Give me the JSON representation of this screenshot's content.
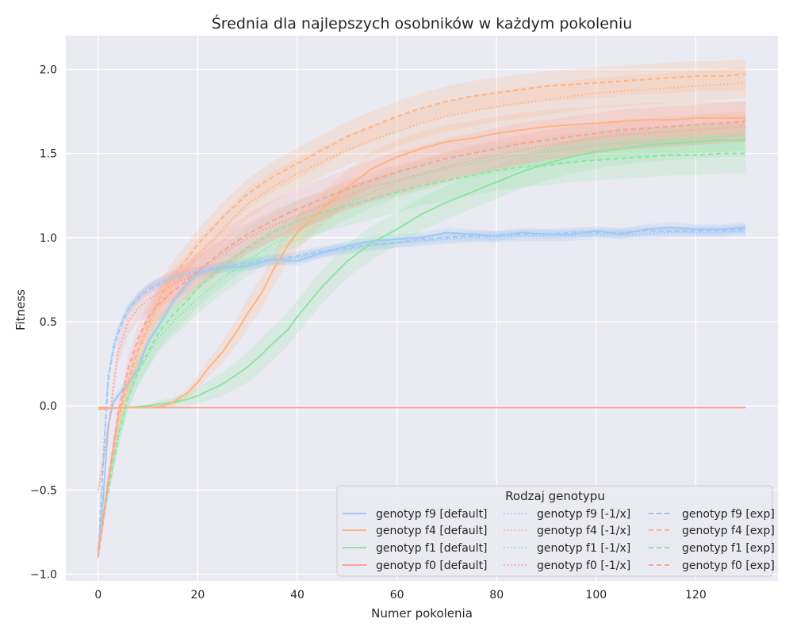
{
  "chart_data": {
    "type": "line",
    "title": "Średnia dla najlepszych osobników w każdym pokoleniu",
    "xlabel": "Numer pokolenia",
    "ylabel": "Fitness",
    "xlim": [
      -6.5,
      136.5
    ],
    "ylim": [
      -1.04,
      2.2
    ],
    "xticks": [
      0,
      20,
      40,
      60,
      80,
      100,
      120
    ],
    "yticks": [
      -1.0,
      -0.5,
      0.0,
      0.5,
      1.0,
      1.5,
      2.0
    ],
    "xtick_labels": [
      "0",
      "20",
      "40",
      "60",
      "80",
      "100",
      "120"
    ],
    "ytick_labels": [
      "−1.0",
      "−0.5",
      "0.0",
      "0.5",
      "1.0",
      "1.5",
      "2.0"
    ],
    "grid": true,
    "legend": {
      "title": "Rodzaj genotypu",
      "placement": "lower-right",
      "columns": 3
    },
    "colors": {
      "f9": "#a1c9f4",
      "f4": "#ffb482",
      "f1": "#8de5a1",
      "f0": "#ff9f9b",
      "background": "#eaeaf2",
      "grid": "#ffffff"
    },
    "series": [
      {
        "name": "genotyp f9 [default]",
        "genotype": "f9",
        "style": "solid",
        "x": [
          0,
          1,
          2,
          3,
          4,
          5,
          6,
          8,
          10,
          12,
          15,
          18,
          20,
          25,
          30,
          35,
          40,
          45,
          50,
          55,
          60,
          65,
          70,
          75,
          80,
          85,
          90,
          95,
          100,
          105,
          110,
          115,
          120,
          125,
          130
        ],
        "y": [
          -0.88,
          -0.55,
          -0.12,
          0.02,
          0.06,
          0.1,
          0.13,
          0.22,
          0.38,
          0.47,
          0.62,
          0.73,
          0.79,
          0.82,
          0.83,
          0.87,
          0.86,
          0.91,
          0.95,
          0.98,
          0.99,
          1.0,
          1.03,
          1.02,
          1.01,
          1.03,
          1.02,
          1.02,
          1.04,
          1.02,
          1.05,
          1.06,
          1.05,
          1.05,
          1.06
        ],
        "band": [
          0.02,
          0.02,
          0.02,
          0.03,
          0.03,
          0.03,
          0.03,
          0.03,
          0.03,
          0.03,
          0.03,
          0.03,
          0.03,
          0.03,
          0.03,
          0.03,
          0.03,
          0.03,
          0.03,
          0.03,
          0.03,
          0.03,
          0.03,
          0.03,
          0.03,
          0.03,
          0.03,
          0.03,
          0.03,
          0.03,
          0.03,
          0.03,
          0.03,
          0.03,
          0.03
        ]
      },
      {
        "name": "genotyp f4 [default]",
        "genotype": "f4",
        "style": "solid",
        "x": [
          0,
          5,
          10,
          13,
          15,
          18,
          20,
          22,
          25,
          28,
          30,
          33,
          35,
          38,
          40,
          45,
          50,
          55,
          60,
          65,
          70,
          75,
          80,
          85,
          90,
          95,
          100,
          105,
          110,
          115,
          120,
          125,
          130
        ],
        "y": [
          -0.02,
          -0.01,
          -0.01,
          0.0,
          0.02,
          0.08,
          0.14,
          0.22,
          0.32,
          0.45,
          0.55,
          0.68,
          0.8,
          0.95,
          1.03,
          1.17,
          1.3,
          1.41,
          1.48,
          1.53,
          1.57,
          1.59,
          1.62,
          1.64,
          1.66,
          1.67,
          1.68,
          1.69,
          1.7,
          1.7,
          1.71,
          1.71,
          1.71
        ],
        "band": [
          0.0,
          0.0,
          0.0,
          0.01,
          0.02,
          0.03,
          0.04,
          0.05,
          0.06,
          0.08,
          0.09,
          0.1,
          0.1,
          0.1,
          0.1,
          0.1,
          0.1,
          0.1,
          0.1,
          0.1,
          0.1,
          0.1,
          0.1,
          0.1,
          0.1,
          0.1,
          0.1,
          0.1,
          0.1,
          0.1,
          0.1,
          0.1,
          0.1
        ]
      },
      {
        "name": "genotyp f1 [default]",
        "genotype": "f1",
        "style": "solid",
        "x": [
          0,
          5,
          10,
          12,
          15,
          18,
          20,
          25,
          30,
          33,
          35,
          38,
          40,
          45,
          50,
          55,
          60,
          65,
          70,
          75,
          80,
          85,
          90,
          95,
          100,
          105,
          110,
          115,
          120,
          125,
          130
        ],
        "y": [
          -0.02,
          -0.01,
          0.0,
          0.01,
          0.02,
          0.04,
          0.06,
          0.13,
          0.23,
          0.31,
          0.37,
          0.45,
          0.53,
          0.71,
          0.86,
          0.97,
          1.05,
          1.14,
          1.21,
          1.27,
          1.33,
          1.39,
          1.44,
          1.48,
          1.51,
          1.53,
          1.55,
          1.56,
          1.57,
          1.58,
          1.58
        ],
        "band": [
          0.0,
          0.0,
          0.01,
          0.02,
          0.03,
          0.04,
          0.05,
          0.07,
          0.09,
          0.1,
          0.1,
          0.1,
          0.1,
          0.1,
          0.1,
          0.1,
          0.1,
          0.1,
          0.1,
          0.1,
          0.1,
          0.1,
          0.1,
          0.1,
          0.1,
          0.1,
          0.1,
          0.1,
          0.1,
          0.1,
          0.1
        ]
      },
      {
        "name": "genotyp f0 [default]",
        "genotype": "f0",
        "style": "solid",
        "x": [
          0,
          130
        ],
        "y": [
          -0.01,
          -0.01
        ],
        "band": [
          0.0,
          0.0
        ]
      },
      {
        "name": "genotyp f9 [-1/x]",
        "genotype": "f9",
        "style": "dotted",
        "x": [
          0,
          1,
          2,
          3,
          4,
          5,
          6,
          8,
          10,
          12,
          15,
          18,
          20,
          25,
          30,
          35,
          40,
          45,
          50,
          55,
          60,
          65,
          70,
          75,
          80,
          85,
          90,
          95,
          100,
          105,
          110,
          115,
          120,
          125,
          130
        ],
        "y": [
          -0.9,
          -0.3,
          0.18,
          0.35,
          0.45,
          0.52,
          0.58,
          0.65,
          0.7,
          0.73,
          0.77,
          0.79,
          0.8,
          0.82,
          0.84,
          0.86,
          0.88,
          0.91,
          0.93,
          0.95,
          0.97,
          0.98,
          0.99,
          1.0,
          1.0,
          1.01,
          1.01,
          1.01,
          1.02,
          1.02,
          1.02,
          1.03,
          1.03,
          1.03,
          1.04
        ],
        "band": [
          0.02,
          0.03,
          0.03,
          0.03,
          0.03,
          0.03,
          0.03,
          0.03,
          0.03,
          0.03,
          0.03,
          0.03,
          0.03,
          0.03,
          0.03,
          0.03,
          0.03,
          0.03,
          0.03,
          0.03,
          0.03,
          0.03,
          0.03,
          0.03,
          0.03,
          0.03,
          0.03,
          0.03,
          0.03,
          0.03,
          0.03,
          0.03,
          0.03,
          0.03,
          0.03
        ]
      },
      {
        "name": "genotyp f4 [-1/x]",
        "genotype": "f4",
        "style": "dotted",
        "x": [
          0,
          2,
          4,
          6,
          8,
          10,
          12,
          15,
          18,
          20,
          25,
          30,
          35,
          40,
          45,
          50,
          55,
          60,
          65,
          70,
          75,
          80,
          85,
          90,
          95,
          100,
          105,
          110,
          115,
          120,
          125,
          130
        ],
        "y": [
          -0.85,
          -0.45,
          -0.1,
          0.12,
          0.3,
          0.45,
          0.58,
          0.72,
          0.82,
          0.9,
          1.05,
          1.2,
          1.3,
          1.38,
          1.45,
          1.52,
          1.58,
          1.63,
          1.68,
          1.72,
          1.75,
          1.78,
          1.8,
          1.82,
          1.84,
          1.86,
          1.87,
          1.88,
          1.89,
          1.9,
          1.91,
          1.92
        ],
        "band": [
          0.05,
          0.05,
          0.06,
          0.07,
          0.08,
          0.08,
          0.09,
          0.09,
          0.09,
          0.09,
          0.09,
          0.09,
          0.09,
          0.09,
          0.09,
          0.09,
          0.09,
          0.09,
          0.09,
          0.09,
          0.09,
          0.09,
          0.09,
          0.09,
          0.09,
          0.09,
          0.09,
          0.09,
          0.09,
          0.09,
          0.09,
          0.09
        ]
      },
      {
        "name": "genotyp f1 [-1/x]",
        "genotype": "f1",
        "style": "dotted",
        "x": [
          0,
          2,
          4,
          6,
          8,
          10,
          12,
          15,
          18,
          20,
          25,
          30,
          35,
          40,
          45,
          50,
          55,
          60,
          65,
          70,
          75,
          80,
          85,
          90,
          95,
          100,
          105,
          110,
          115,
          120,
          125,
          130
        ],
        "y": [
          -0.85,
          -0.5,
          -0.2,
          0.05,
          0.2,
          0.3,
          0.4,
          0.5,
          0.58,
          0.64,
          0.76,
          0.86,
          0.96,
          1.04,
          1.12,
          1.2,
          1.27,
          1.33,
          1.37,
          1.41,
          1.44,
          1.47,
          1.49,
          1.51,
          1.53,
          1.55,
          1.56,
          1.57,
          1.58,
          1.59,
          1.6,
          1.61
        ],
        "band": [
          0.05,
          0.05,
          0.06,
          0.07,
          0.08,
          0.08,
          0.09,
          0.09,
          0.09,
          0.09,
          0.09,
          0.09,
          0.09,
          0.09,
          0.09,
          0.09,
          0.09,
          0.09,
          0.09,
          0.09,
          0.09,
          0.09,
          0.09,
          0.09,
          0.09,
          0.09,
          0.09,
          0.09,
          0.09,
          0.09,
          0.09,
          0.09
        ]
      },
      {
        "name": "genotyp f0 [-1/x]",
        "genotype": "f0",
        "style": "dotted",
        "x": [
          0,
          2,
          3,
          4,
          6,
          8,
          10,
          12,
          15,
          18,
          20,
          25,
          30,
          35,
          40,
          45,
          50,
          55,
          60,
          65,
          70,
          75,
          80,
          85,
          90,
          95,
          100,
          105,
          110,
          115,
          120,
          125,
          130
        ],
        "y": [
          -0.5,
          -0.15,
          0.1,
          0.32,
          0.5,
          0.58,
          0.63,
          0.67,
          0.72,
          0.76,
          0.8,
          0.9,
          1.0,
          1.07,
          1.13,
          1.19,
          1.25,
          1.3,
          1.34,
          1.38,
          1.42,
          1.46,
          1.49,
          1.52,
          1.55,
          1.57,
          1.59,
          1.61,
          1.62,
          1.63,
          1.64,
          1.65,
          1.66
        ],
        "band": [
          0.04,
          0.05,
          0.06,
          0.07,
          0.08,
          0.08,
          0.09,
          0.09,
          0.09,
          0.09,
          0.09,
          0.09,
          0.09,
          0.09,
          0.09,
          0.09,
          0.09,
          0.09,
          0.09,
          0.09,
          0.09,
          0.09,
          0.09,
          0.09,
          0.09,
          0.09,
          0.09,
          0.09,
          0.09,
          0.09,
          0.09,
          0.09,
          0.09
        ]
      },
      {
        "name": "genotyp f9 [exp]",
        "genotype": "f9",
        "style": "dashed",
        "x": [
          0,
          1,
          2,
          3,
          4,
          5,
          6,
          8,
          10,
          12,
          15,
          18,
          20,
          25,
          30,
          35,
          40,
          45,
          50,
          55,
          60,
          65,
          70,
          75,
          80,
          85,
          90,
          95,
          100,
          105,
          110,
          115,
          120,
          125,
          130
        ],
        "y": [
          -0.88,
          -0.35,
          0.15,
          0.33,
          0.43,
          0.51,
          0.57,
          0.64,
          0.69,
          0.72,
          0.76,
          0.78,
          0.8,
          0.83,
          0.85,
          0.87,
          0.89,
          0.92,
          0.94,
          0.96,
          0.97,
          0.99,
          1.0,
          1.01,
          1.01,
          1.02,
          1.02,
          1.03,
          1.03,
          1.03,
          1.04,
          1.04,
          1.04,
          1.04,
          1.05
        ],
        "band": [
          0.02,
          0.03,
          0.03,
          0.03,
          0.03,
          0.03,
          0.03,
          0.03,
          0.03,
          0.03,
          0.03,
          0.03,
          0.03,
          0.03,
          0.03,
          0.03,
          0.03,
          0.03,
          0.03,
          0.03,
          0.03,
          0.03,
          0.03,
          0.03,
          0.03,
          0.03,
          0.03,
          0.03,
          0.03,
          0.03,
          0.03,
          0.03,
          0.03,
          0.03,
          0.03
        ]
      },
      {
        "name": "genotyp f4 [exp]",
        "genotype": "f4",
        "style": "dashed",
        "x": [
          0,
          2,
          4,
          6,
          8,
          10,
          12,
          15,
          18,
          20,
          25,
          30,
          35,
          40,
          45,
          50,
          55,
          60,
          65,
          70,
          75,
          80,
          85,
          90,
          95,
          100,
          105,
          110,
          115,
          120,
          125,
          130
        ],
        "y": [
          -0.88,
          -0.45,
          -0.08,
          0.15,
          0.33,
          0.48,
          0.62,
          0.77,
          0.88,
          0.96,
          1.12,
          1.26,
          1.36,
          1.44,
          1.52,
          1.6,
          1.66,
          1.72,
          1.77,
          1.81,
          1.84,
          1.86,
          1.88,
          1.9,
          1.91,
          1.92,
          1.93,
          1.94,
          1.95,
          1.96,
          1.96,
          1.97
        ],
        "band": [
          0.05,
          0.05,
          0.06,
          0.07,
          0.08,
          0.08,
          0.09,
          0.09,
          0.09,
          0.09,
          0.09,
          0.09,
          0.09,
          0.09,
          0.09,
          0.09,
          0.09,
          0.09,
          0.09,
          0.09,
          0.09,
          0.09,
          0.09,
          0.09,
          0.09,
          0.09,
          0.09,
          0.09,
          0.09,
          0.09,
          0.09,
          0.09
        ]
      },
      {
        "name": "genotyp f1 [exp]",
        "genotype": "f1",
        "style": "dashed",
        "x": [
          0,
          2,
          4,
          6,
          8,
          10,
          12,
          15,
          18,
          20,
          25,
          30,
          35,
          40,
          45,
          50,
          55,
          60,
          65,
          70,
          75,
          80,
          85,
          90,
          95,
          100,
          105,
          110,
          115,
          120,
          125,
          130
        ],
        "y": [
          -0.85,
          -0.5,
          -0.18,
          0.05,
          0.2,
          0.32,
          0.43,
          0.54,
          0.63,
          0.7,
          0.83,
          0.94,
          1.03,
          1.1,
          1.15,
          1.19,
          1.23,
          1.27,
          1.31,
          1.34,
          1.37,
          1.4,
          1.42,
          1.43,
          1.45,
          1.46,
          1.47,
          1.48,
          1.49,
          1.49,
          1.5,
          1.5
        ],
        "band": [
          0.05,
          0.05,
          0.06,
          0.07,
          0.08,
          0.09,
          0.1,
          0.1,
          0.11,
          0.11,
          0.12,
          0.12,
          0.12,
          0.12,
          0.12,
          0.12,
          0.12,
          0.12,
          0.12,
          0.12,
          0.12,
          0.12,
          0.12,
          0.12,
          0.12,
          0.12,
          0.12,
          0.12,
          0.12,
          0.12,
          0.12,
          0.12
        ]
      },
      {
        "name": "genotyp f0 [exp]",
        "genotype": "f0",
        "style": "dashed",
        "x": [
          0,
          2,
          4,
          6,
          8,
          10,
          12,
          15,
          18,
          20,
          25,
          30,
          35,
          40,
          45,
          50,
          55,
          60,
          65,
          70,
          75,
          80,
          85,
          90,
          95,
          100,
          105,
          110,
          115,
          120,
          125,
          130
        ],
        "y": [
          -0.9,
          -0.45,
          -0.05,
          0.22,
          0.4,
          0.52,
          0.6,
          0.68,
          0.75,
          0.8,
          0.92,
          1.02,
          1.1,
          1.17,
          1.23,
          1.29,
          1.34,
          1.39,
          1.43,
          1.47,
          1.5,
          1.53,
          1.56,
          1.58,
          1.6,
          1.62,
          1.64,
          1.65,
          1.66,
          1.67,
          1.68,
          1.69
        ],
        "band": [
          0.05,
          0.05,
          0.06,
          0.07,
          0.08,
          0.09,
          0.1,
          0.1,
          0.11,
          0.11,
          0.12,
          0.12,
          0.12,
          0.12,
          0.12,
          0.12,
          0.12,
          0.12,
          0.12,
          0.12,
          0.12,
          0.12,
          0.12,
          0.12,
          0.12,
          0.12,
          0.12,
          0.12,
          0.12,
          0.12,
          0.12,
          0.12
        ]
      }
    ]
  }
}
